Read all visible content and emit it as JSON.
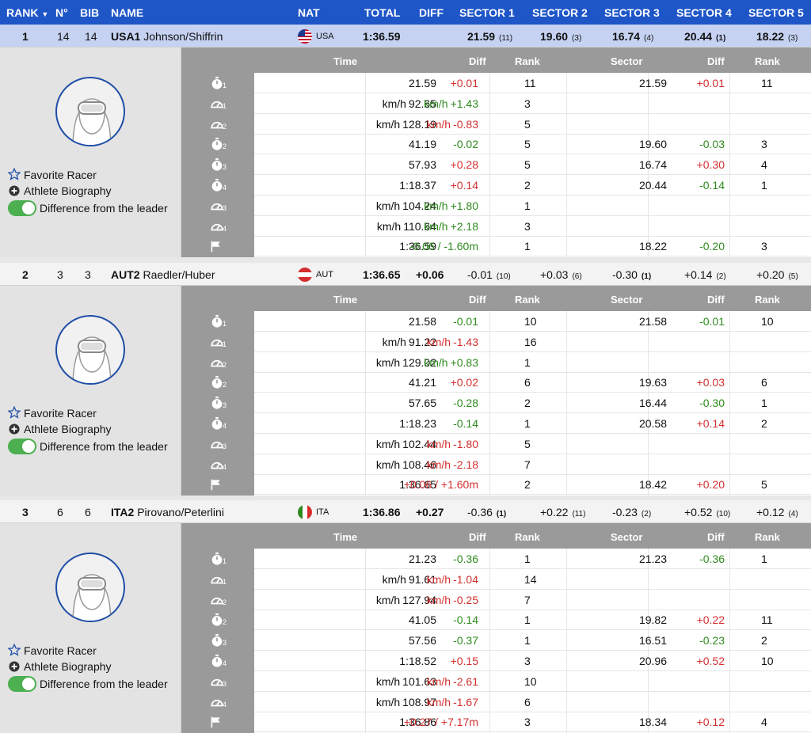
{
  "header": {
    "rank": "RANK",
    "no": "N°",
    "bib": "BIB",
    "name": "NAME",
    "nat": "NAT",
    "total": "TOTAL",
    "diff": "DIFF",
    "s1": "SECTOR 1",
    "s2": "SECTOR 2",
    "s3": "SECTOR 3",
    "s4": "SECTOR 4",
    "s5": "SECTOR 5"
  },
  "labels": {
    "favorite": "Favorite Racer",
    "bio": "Athlete Biography",
    "diff_leader": "Difference from the leader",
    "col_time": "Time",
    "col_diff": "Diff",
    "col_rank": "Rank",
    "col_sector": "Sector",
    "col_sdiff": "Diff",
    "col_srank": "Rank",
    "kmh": "km/h"
  },
  "racers": [
    {
      "rank": "1",
      "no": "14",
      "bib": "14",
      "code": "USA1",
      "names": "Johnson/Shiffrin",
      "nat": "USA",
      "total": "1:36.59",
      "diff": "",
      "sectors": [
        {
          "v": "21.59",
          "r": "(11)"
        },
        {
          "v": "19.60",
          "r": "(3)"
        },
        {
          "v": "16.74",
          "r": "(4)"
        },
        {
          "v": "20.44",
          "r": "(1)"
        },
        {
          "v": "18.22",
          "r": "(3)"
        }
      ],
      "rows": [
        {
          "icon": "stopwatch",
          "sub": "1",
          "time": "21.59",
          "diff": "+0.01",
          "rank": "11",
          "sector": "21.59",
          "sdiff": "+0.01",
          "srank": "11"
        },
        {
          "icon": "speed",
          "sub": "1",
          "kmh": true,
          "time": "92.65",
          "diff": "+1.43",
          "rank": "3",
          "sector": "",
          "sdiff": "",
          "srank": ""
        },
        {
          "icon": "speed",
          "sub": "2",
          "kmh": true,
          "time": "128.19",
          "diff": "-0.83",
          "rank": "5",
          "sector": "",
          "sdiff": "",
          "srank": ""
        },
        {
          "icon": "stopwatch",
          "sub": "2",
          "time": "41.19",
          "diff": "-0.02",
          "rank": "5",
          "sector": "19.60",
          "sdiff": "-0.03",
          "srank": "3"
        },
        {
          "icon": "stopwatch",
          "sub": "3",
          "time": "57.93",
          "diff": "+0.28",
          "rank": "5",
          "sector": "16.74",
          "sdiff": "+0.30",
          "srank": "4"
        },
        {
          "icon": "stopwatch",
          "sub": "4",
          "time": "1:18.37",
          "diff": "+0.14",
          "rank": "2",
          "sector": "20.44",
          "sdiff": "-0.14",
          "srank": "1"
        },
        {
          "icon": "speed",
          "sub": "3",
          "kmh": true,
          "time": "104.24",
          "diff": "+1.80",
          "rank": "1",
          "sector": "",
          "sdiff": "",
          "srank": ""
        },
        {
          "icon": "speed",
          "sub": "4",
          "kmh": true,
          "time": "110.64",
          "diff": "+2.18",
          "rank": "3",
          "sector": "",
          "sdiff": "",
          "srank": ""
        },
        {
          "icon": "flag",
          "sub": "",
          "time": "1:36.59",
          "diff": "-0.06 / -1.60m",
          "rank": "1",
          "sector": "18.22",
          "sdiff": "-0.20",
          "srank": "3"
        }
      ]
    },
    {
      "rank": "2",
      "no": "3",
      "bib": "3",
      "code": "AUT2",
      "names": "Raedler/Huber",
      "nat": "AUT",
      "total": "1:36.65",
      "diff": "+0.06",
      "sectors": [
        {
          "v": "-0.01",
          "r": "(10)"
        },
        {
          "v": "+0.03",
          "r": "(6)"
        },
        {
          "v": "-0.30",
          "r": "(1)"
        },
        {
          "v": "+0.14",
          "r": "(2)"
        },
        {
          "v": "+0.20",
          "r": "(5)"
        }
      ],
      "rows": [
        {
          "icon": "stopwatch",
          "sub": "1",
          "time": "21.58",
          "diff": "-0.01",
          "rank": "10",
          "sector": "21.58",
          "sdiff": "-0.01",
          "srank": "10"
        },
        {
          "icon": "speed",
          "sub": "1",
          "kmh": true,
          "time": "91.22",
          "diff": "-1.43",
          "rank": "16",
          "sector": "",
          "sdiff": "",
          "srank": ""
        },
        {
          "icon": "speed",
          "sub": "2",
          "kmh": true,
          "time": "129.02",
          "diff": "+0.83",
          "rank": "1",
          "sector": "",
          "sdiff": "",
          "srank": ""
        },
        {
          "icon": "stopwatch",
          "sub": "2",
          "time": "41.21",
          "diff": "+0.02",
          "rank": "6",
          "sector": "19.63",
          "sdiff": "+0.03",
          "srank": "6"
        },
        {
          "icon": "stopwatch",
          "sub": "3",
          "time": "57.65",
          "diff": "-0.28",
          "rank": "2",
          "sector": "16.44",
          "sdiff": "-0.30",
          "srank": "1"
        },
        {
          "icon": "stopwatch",
          "sub": "4",
          "time": "1:18.23",
          "diff": "-0.14",
          "rank": "1",
          "sector": "20.58",
          "sdiff": "+0.14",
          "srank": "2"
        },
        {
          "icon": "speed",
          "sub": "3",
          "kmh": true,
          "time": "102.44",
          "diff": "-1.80",
          "rank": "5",
          "sector": "",
          "sdiff": "",
          "srank": ""
        },
        {
          "icon": "speed",
          "sub": "4",
          "kmh": true,
          "time": "108.46",
          "diff": "-2.18",
          "rank": "7",
          "sector": "",
          "sdiff": "",
          "srank": ""
        },
        {
          "icon": "flag",
          "sub": "",
          "time": "1:36.65",
          "diff": "+0.06 / +1.60m",
          "rank": "2",
          "sector": "18.42",
          "sdiff": "+0.20",
          "srank": "5"
        }
      ]
    },
    {
      "rank": "3",
      "no": "6",
      "bib": "6",
      "code": "ITA2",
      "names": "Pirovano/Peterlini",
      "nat": "ITA",
      "total": "1:36.86",
      "diff": "+0.27",
      "sectors": [
        {
          "v": "-0.36",
          "r": "(1)"
        },
        {
          "v": "+0.22",
          "r": "(11)"
        },
        {
          "v": "-0.23",
          "r": "(2)"
        },
        {
          "v": "+0.52",
          "r": "(10)"
        },
        {
          "v": "+0.12",
          "r": "(4)"
        }
      ],
      "rows": [
        {
          "icon": "stopwatch",
          "sub": "1",
          "time": "21.23",
          "diff": "-0.36",
          "rank": "1",
          "sector": "21.23",
          "sdiff": "-0.36",
          "srank": "1"
        },
        {
          "icon": "speed",
          "sub": "1",
          "kmh": true,
          "time": "91.61",
          "diff": "-1.04",
          "rank": "14",
          "sector": "",
          "sdiff": "",
          "srank": ""
        },
        {
          "icon": "speed",
          "sub": "2",
          "kmh": true,
          "time": "127.94",
          "diff": "-0.25",
          "rank": "7",
          "sector": "",
          "sdiff": "",
          "srank": ""
        },
        {
          "icon": "stopwatch",
          "sub": "2",
          "time": "41.05",
          "diff": "-0.14",
          "rank": "1",
          "sector": "19.82",
          "sdiff": "+0.22",
          "srank": "11"
        },
        {
          "icon": "stopwatch",
          "sub": "3",
          "time": "57.56",
          "diff": "-0.37",
          "rank": "1",
          "sector": "16.51",
          "sdiff": "-0.23",
          "srank": "2"
        },
        {
          "icon": "stopwatch",
          "sub": "4",
          "time": "1:18.52",
          "diff": "+0.15",
          "rank": "3",
          "sector": "20.96",
          "sdiff": "+0.52",
          "srank": "10"
        },
        {
          "icon": "speed",
          "sub": "3",
          "kmh": true,
          "time": "101.63",
          "diff": "-2.61",
          "rank": "10",
          "sector": "",
          "sdiff": "",
          "srank": ""
        },
        {
          "icon": "speed",
          "sub": "4",
          "kmh": true,
          "time": "108.97",
          "diff": "-1.67",
          "rank": "6",
          "sector": "",
          "sdiff": "",
          "srank": ""
        },
        {
          "icon": "flag",
          "sub": "",
          "time": "1:36.86",
          "diff": "+0.27 / +7.17m",
          "rank": "3",
          "sector": "18.34",
          "sdiff": "+0.12",
          "srank": "4"
        }
      ]
    }
  ],
  "colors": {
    "header": "#1e56c8",
    "selected": "#c5d2f2",
    "red": "#d32f2f",
    "green": "#2e8b1e",
    "toggle": "#4caf50"
  }
}
